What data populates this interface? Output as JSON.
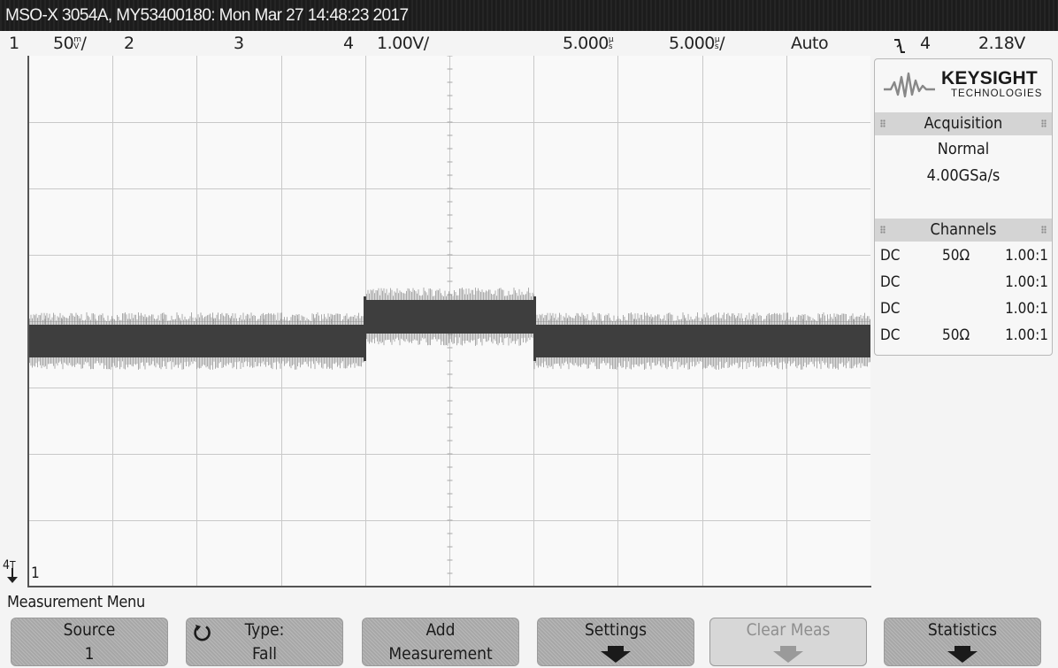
{
  "title_bar": {
    "text": "MSO-X 3054A, MY53400180: Mon Mar 27 14:48:23 2017"
  },
  "status_bar": {
    "ch1_num": "1",
    "ch1_scale": "50",
    "ch1_unit_top": "m",
    "ch1_unit_bottom": "V",
    "ch1_suffix": "/",
    "ch2_num": "2",
    "ch3_num": "3",
    "ch4_num": "4",
    "ch4_scale": "1.00V/",
    "time_delay": "5.000",
    "time_delay_unit_top": "μ",
    "time_delay_unit_bottom": "s",
    "timebase": "5.000",
    "timebase_unit_top": "μ",
    "timebase_unit_bottom": "s",
    "timebase_suffix": "/",
    "trigger_mode": "Auto",
    "trigger_icon": "falling-edge-icon",
    "trigger_source": "4",
    "trigger_level": "2.18V"
  },
  "panel": {
    "brand": "KEYSIGHT",
    "brand_sub": "TECHNOLOGIES",
    "acquisition": {
      "heading": "Acquisition",
      "mode": "Normal",
      "rate": "4.00GSa/s"
    },
    "channels": {
      "heading": "Channels",
      "rows": [
        {
          "coupling": "DC",
          "impedance": "50Ω",
          "probe": "1.00:1"
        },
        {
          "coupling": "DC",
          "impedance": "",
          "probe": "1.00:1"
        },
        {
          "coupling": "DC",
          "impedance": "",
          "probe": "1.00:1"
        },
        {
          "coupling": "DC",
          "impedance": "50Ω",
          "probe": "1.00:1"
        }
      ]
    }
  },
  "markers": {
    "trigger_level_label": "4",
    "trigger_level_sub": "T",
    "ch1_ground_label": "1"
  },
  "menu": {
    "title": "Measurement Menu",
    "softkeys": [
      {
        "line1": "Source",
        "line2": "1"
      },
      {
        "line1": "Type:",
        "line2": "Fall"
      },
      {
        "line1": "Add",
        "line2": "Measurement"
      },
      {
        "line1": "Settings",
        "line2": ""
      },
      {
        "line1": "Clear Meas",
        "line2": ""
      },
      {
        "line1": "Statistics",
        "line2": ""
      }
    ]
  },
  "colors": {
    "trace": "#3e3e3e",
    "grid": "#c9c9c9",
    "softkey": "#b0b0b0"
  }
}
